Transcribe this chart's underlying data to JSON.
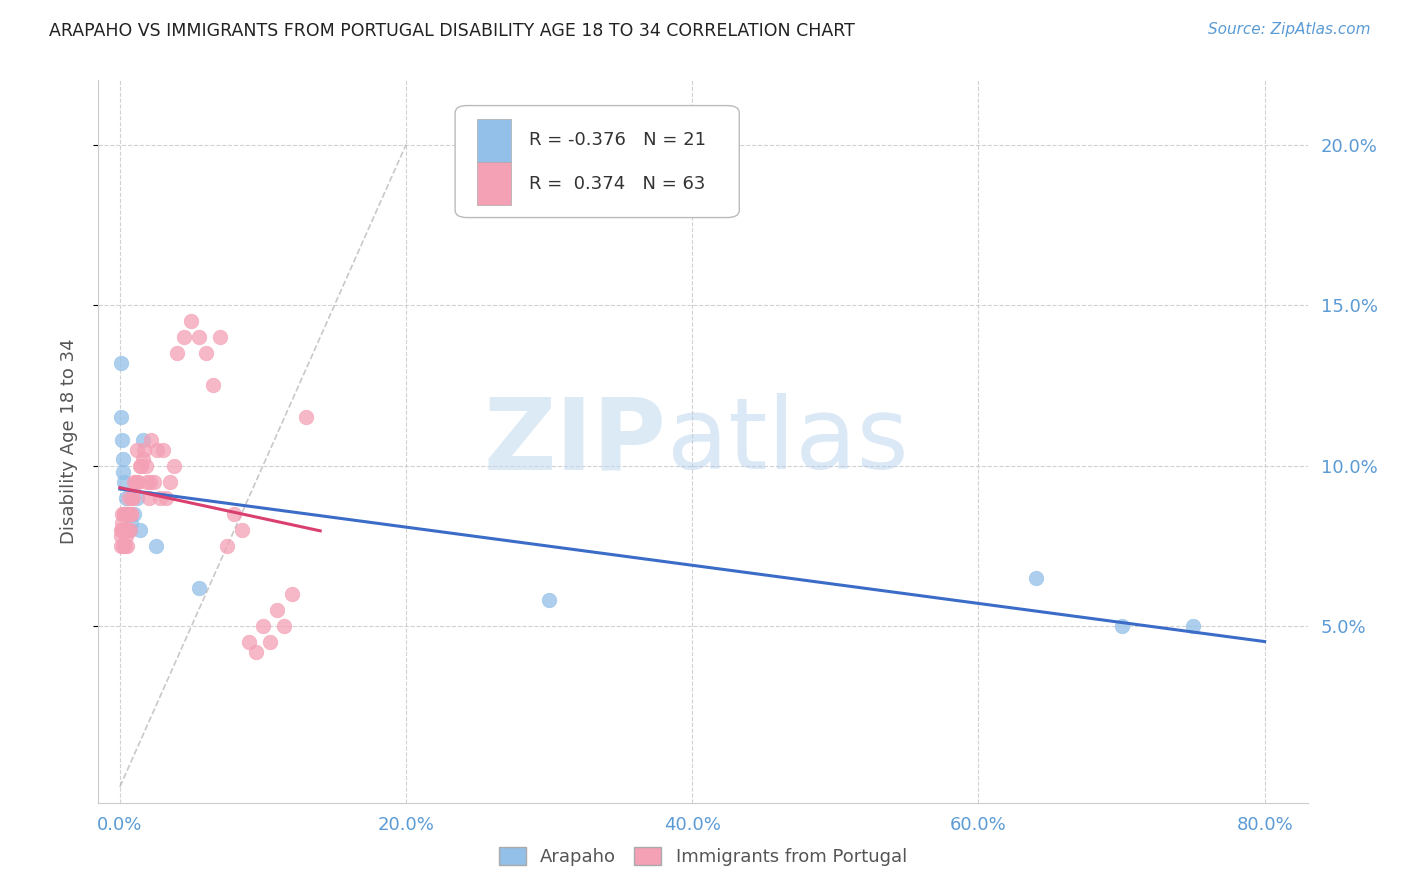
{
  "title": "ARAPAHO VS IMMIGRANTS FROM PORTUGAL DISABILITY AGE 18 TO 34 CORRELATION CHART",
  "source": "Source: ZipAtlas.com",
  "ylabel": "Disability Age 18 to 34",
  "xlim": [
    -1.5,
    83
  ],
  "ylim": [
    -0.5,
    22
  ],
  "watermark_zip": "ZIP",
  "watermark_atlas": "atlas",
  "legend_blue_r": "-0.376",
  "legend_blue_n": "21",
  "legend_pink_r": "0.374",
  "legend_pink_n": "63",
  "blue_color": "#92C0E8",
  "pink_color": "#F4A0B5",
  "blue_line_color": "#3B6CC7",
  "pink_line_color": "#D94070",
  "title_color": "#222222",
  "tick_color": "#5B9BD5",
  "grid_color": "#CCCCCC",
  "background_color": "#FFFFFF",
  "arapaho_x": [
    0.05,
    0.1,
    0.15,
    0.2,
    0.25,
    0.3,
    0.4,
    0.5,
    0.6,
    0.7,
    0.8,
    1.0,
    1.2,
    1.4,
    1.6,
    2.5,
    5.5,
    30.0,
    64.0,
    70.0,
    75.0
  ],
  "arapaho_y": [
    13.2,
    11.5,
    10.8,
    10.2,
    9.8,
    9.5,
    9.0,
    8.5,
    8.5,
    8.0,
    8.2,
    8.5,
    9.0,
    8.0,
    10.8,
    7.5,
    6.2,
    5.8,
    6.5,
    5.0,
    5.0
  ],
  "portugal_x": [
    0.05,
    0.08,
    0.1,
    0.12,
    0.15,
    0.18,
    0.2,
    0.22,
    0.25,
    0.28,
    0.3,
    0.32,
    0.35,
    0.38,
    0.4,
    0.45,
    0.5,
    0.55,
    0.6,
    0.65,
    0.7,
    0.75,
    0.8,
    0.85,
    0.9,
    1.0,
    1.1,
    1.2,
    1.3,
    1.4,
    1.5,
    1.6,
    1.7,
    1.8,
    1.9,
    2.0,
    2.1,
    2.2,
    2.4,
    2.6,
    2.8,
    3.0,
    3.2,
    3.5,
    3.8,
    4.0,
    4.5,
    5.0,
    5.5,
    6.0,
    6.5,
    7.0,
    7.5,
    8.0,
    8.5,
    9.0,
    9.5,
    10.0,
    10.5,
    11.0,
    11.5,
    12.0,
    13.0
  ],
  "portugal_y": [
    8.0,
    7.5,
    7.8,
    8.0,
    8.2,
    8.5,
    7.5,
    8.0,
    8.0,
    8.5,
    8.0,
    8.5,
    7.5,
    8.5,
    7.8,
    8.5,
    7.5,
    8.0,
    8.5,
    9.0,
    8.0,
    8.5,
    8.5,
    9.0,
    9.0,
    9.5,
    9.5,
    10.5,
    9.5,
    10.0,
    10.0,
    10.2,
    10.5,
    10.0,
    9.5,
    9.0,
    9.5,
    10.8,
    9.5,
    10.5,
    9.0,
    10.5,
    9.0,
    9.5,
    10.0,
    13.5,
    14.0,
    14.5,
    14.0,
    13.5,
    12.5,
    14.0,
    7.5,
    8.5,
    8.0,
    4.5,
    4.2,
    5.0,
    4.5,
    5.5,
    5.0,
    6.0,
    11.5
  ],
  "xticks": [
    0,
    20,
    40,
    60,
    80
  ],
  "yticks": [
    5,
    10,
    15,
    20
  ],
  "xtick_labels": [
    "0.0%",
    "20.0%",
    "40.0%",
    "60.0%",
    "80.0%"
  ],
  "ytick_labels": [
    "5.0%",
    "10.0%",
    "15.0%",
    "20.0%"
  ]
}
